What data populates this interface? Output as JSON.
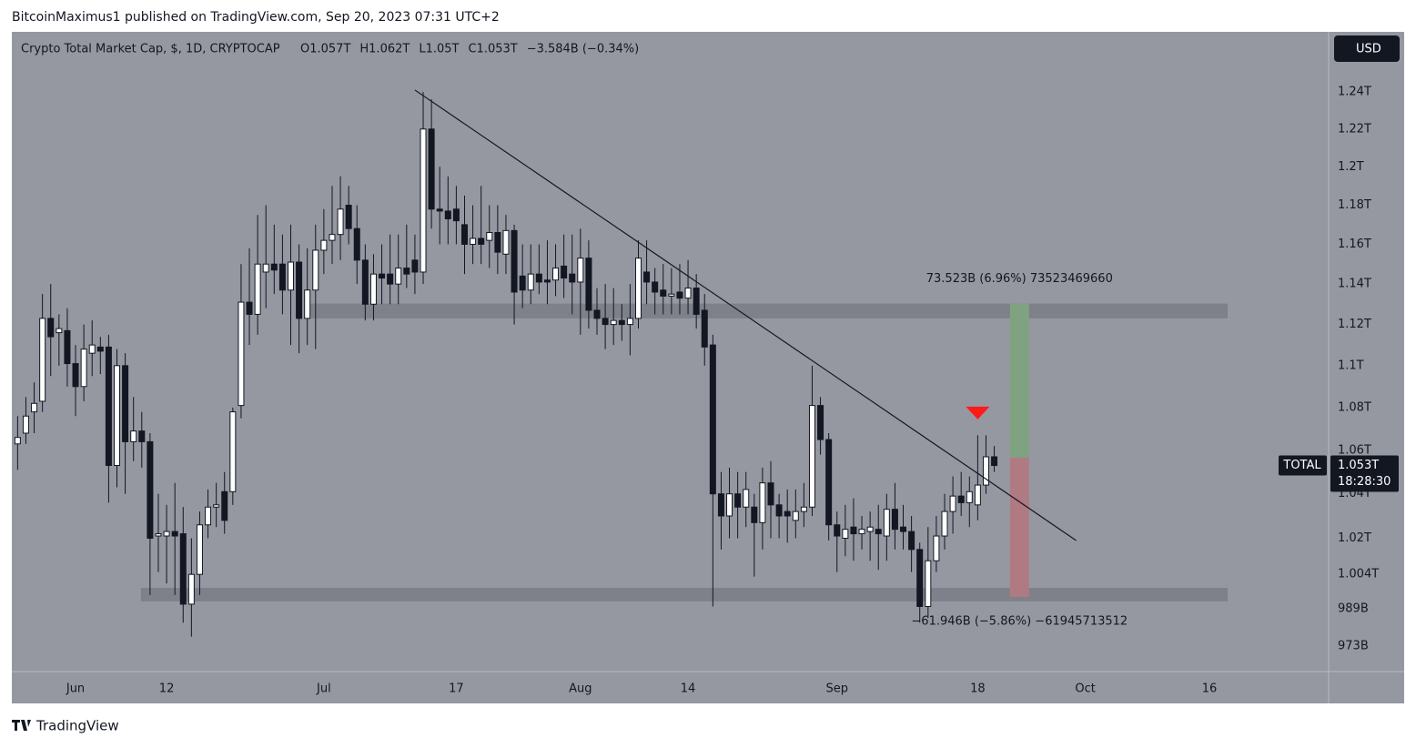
{
  "header": "BitcoinMaximus1 published on TradingView.com, Sep 20, 2023 07:31 UTC+2",
  "footer": "TradingView",
  "chart_data": {
    "type": "candlestick",
    "title": "Crypto Total Market Cap, $, 1D, CRYPTOCAP",
    "legend": [
      "O1.057T",
      "H1.062T",
      "L1.05T",
      "C1.053T",
      "−3.584B (−0.34%)"
    ],
    "currency": "USD",
    "symbol": "TOTAL",
    "last_price": {
      "value": 1053,
      "label": "1.053T"
    },
    "countdown": "18:28:30",
    "log_scale": true,
    "up_color": "#ffffff",
    "down_color": "#131722",
    "background": "#9598a1",
    "xlim": [
      -0.7,
      158.4
    ],
    "xticks": [
      {
        "value": 7,
        "label": "Jun"
      },
      {
        "value": 18,
        "label": "12"
      },
      {
        "value": 37,
        "label": "Jul"
      },
      {
        "value": 53,
        "label": "17"
      },
      {
        "value": 68,
        "label": "Aug"
      },
      {
        "value": 81,
        "label": "14"
      },
      {
        "value": 99,
        "label": "Sep"
      },
      {
        "value": 116,
        "label": "18"
      },
      {
        "value": 129,
        "label": "Oct"
      },
      {
        "value": 144,
        "label": "16"
      }
    ],
    "ylim": [
      962.2,
      1273
    ],
    "yticks": [
      {
        "value": 1240,
        "label": "1.24T"
      },
      {
        "value": 1220,
        "label": "1.22T"
      },
      {
        "value": 1200,
        "label": "1.2T"
      },
      {
        "value": 1180,
        "label": "1.18T"
      },
      {
        "value": 1160,
        "label": "1.16T"
      },
      {
        "value": 1140,
        "label": "1.14T"
      },
      {
        "value": 1120,
        "label": "1.12T"
      },
      {
        "value": 1100,
        "label": "1.1T"
      },
      {
        "value": 1080,
        "label": "1.08T"
      },
      {
        "value": 1060,
        "label": "1.06T"
      },
      {
        "value": 1040,
        "label": "1.04T"
      },
      {
        "value": 1020,
        "label": "1.02T"
      },
      {
        "value": 1004,
        "label": "1.004T"
      },
      {
        "value": 989,
        "label": "989B"
      },
      {
        "value": 973,
        "label": "973B"
      }
    ],
    "open": [
      1063,
      1068,
      1078,
      1083,
      1123,
      1116,
      1117,
      1101,
      1090,
      1106,
      1109,
      1109,
      1053,
      1100,
      1064,
      1069,
      1064,
      1021,
      1021,
      1023,
      1022,
      991,
      1004,
      1026,
      1034,
      1041,
      1041,
      1081,
      1131,
      1125,
      1146,
      1150,
      1150,
      1137,
      1151,
      1123,
      1137,
      1157,
      1162,
      1165,
      1180,
      1168,
      1152,
      1130,
      1145,
      1145,
      1140,
      1148,
      1152,
      1146,
      1220,
      1178,
      1177,
      1178,
      1170,
      1160,
      1163,
      1162,
      1166,
      1155,
      1167,
      1144,
      1137,
      1145,
      1142,
      1142,
      1149,
      1145,
      1141,
      1153,
      1127,
      1123,
      1120,
      1122,
      1120,
      1123,
      1146,
      1141,
      1137,
      1134,
      1136,
      1133,
      1138,
      1127,
      1110,
      1040,
      1030,
      1040,
      1034,
      1034,
      1027,
      1045,
      1035,
      1032,
      1028,
      1032,
      1034,
      1081,
      1065,
      1026,
      1020,
      1025,
      1022,
      1023,
      1024,
      1021,
      1033,
      1025,
      1023,
      1015,
      990,
      1010,
      1021,
      1032,
      1039,
      1036,
      1035,
      1044,
      1057
    ],
    "high": [
      1076,
      1085,
      1092,
      1135,
      1140,
      1125,
      1128,
      1110,
      1120,
      1122,
      1114,
      1115,
      1108,
      1106,
      1085,
      1078,
      1068,
      1040,
      1035,
      1045,
      1034,
      1020,
      1032,
      1042,
      1045,
      1050,
      1080,
      1150,
      1158,
      1175,
      1180,
      1170,
      1165,
      1170,
      1160,
      1158,
      1170,
      1178,
      1190,
      1195,
      1190,
      1180,
      1160,
      1155,
      1160,
      1165,
      1165,
      1170,
      1165,
      1240,
      1236,
      1200,
      1195,
      1190,
      1185,
      1180,
      1190,
      1180,
      1180,
      1175,
      1170,
      1160,
      1160,
      1160,
      1162,
      1160,
      1165,
      1165,
      1168,
      1162,
      1138,
      1140,
      1138,
      1130,
      1140,
      1162,
      1162,
      1148,
      1150,
      1148,
      1150,
      1152,
      1145,
      1135,
      1115,
      1050,
      1052,
      1050,
      1050,
      1040,
      1052,
      1055,
      1040,
      1042,
      1042,
      1045,
      1100,
      1085,
      1068,
      1032,
      1035,
      1038,
      1030,
      1032,
      1035,
      1040,
      1045,
      1035,
      1030,
      1018,
      1025,
      1030,
      1040,
      1048,
      1050,
      1048,
      1067,
      1067,
      1062
    ],
    "low": [
      1051,
      1063,
      1068,
      1078,
      1095,
      1100,
      1090,
      1076,
      1083,
      1095,
      1096,
      1036,
      1043,
      1040,
      1055,
      1052,
      995,
      1005,
      1000,
      995,
      983,
      977,
      995,
      1020,
      1025,
      1022,
      1035,
      1075,
      1110,
      1115,
      1128,
      1135,
      1125,
      1110,
      1106,
      1110,
      1108,
      1145,
      1150,
      1152,
      1160,
      1140,
      1122,
      1122,
      1130,
      1130,
      1130,
      1138,
      1135,
      1140,
      1168,
      1160,
      1160,
      1160,
      1145,
      1150,
      1150,
      1148,
      1145,
      1145,
      1120,
      1128,
      1130,
      1135,
      1130,
      1134,
      1133,
      1125,
      1115,
      1118,
      1115,
      1108,
      1110,
      1112,
      1105,
      1118,
      1130,
      1125,
      1125,
      1125,
      1125,
      1125,
      1118,
      1100,
      990,
      1015,
      1020,
      1020,
      1025,
      1003,
      1015,
      1020,
      1020,
      1018,
      1020,
      1025,
      1030,
      1058,
      1019,
      1005,
      1012,
      1010,
      1015,
      1010,
      1006,
      1010,
      1015,
      1015,
      1005,
      983,
      985,
      1005,
      1015,
      1022,
      1030,
      1025,
      1028,
      1040,
      1050
    ],
    "close": [
      1066,
      1076,
      1082,
      1123,
      1114,
      1118,
      1101,
      1090,
      1108,
      1110,
      1107,
      1053,
      1100,
      1064,
      1069,
      1064,
      1020,
      1022,
      1023,
      1021,
      991,
      1004,
      1026,
      1034,
      1035,
      1028,
      1078,
      1131,
      1125,
      1150,
      1150,
      1147,
      1137,
      1151,
      1123,
      1137,
      1157,
      1162,
      1165,
      1178,
      1168,
      1152,
      1130,
      1145,
      1143,
      1140,
      1148,
      1145,
      1146,
      1220,
      1178,
      1177,
      1173,
      1172,
      1160,
      1163,
      1160,
      1166,
      1156,
      1167,
      1136,
      1137,
      1145,
      1141,
      1141,
      1148,
      1143,
      1141,
      1153,
      1127,
      1123,
      1120,
      1122,
      1120,
      1123,
      1153,
      1141,
      1136,
      1134,
      1135,
      1133,
      1138,
      1125,
      1109,
      1040,
      1030,
      1040,
      1034,
      1042,
      1027,
      1045,
      1035,
      1030,
      1030,
      1032,
      1034,
      1081,
      1065,
      1026,
      1021,
      1024,
      1022,
      1024,
      1025,
      1022,
      1033,
      1024,
      1023,
      1015,
      990,
      1010,
      1021,
      1032,
      1039,
      1036,
      1041,
      1044,
      1057,
      1053
    ],
    "zones": [
      {
        "x": [
          35.3,
          146.2
        ],
        "y": [
          1123,
          1130.3
        ],
        "color": "#7e818a"
      },
      {
        "x": [
          14.9,
          146.2
        ],
        "y": [
          992.2,
          998.1
        ],
        "color": "#7e818a"
      }
    ],
    "trendline": {
      "x": [
        48,
        127.9
      ],
      "y": [
        1241,
        1019
      ],
      "color": "#131722"
    },
    "position": {
      "x": [
        119.9,
        122.2
      ],
      "entry": 1056.6,
      "target": 1130.3,
      "stop": 994.2,
      "target_color": "#7fa380",
      "stop_color": "#b07a82",
      "target_label": "73.523B (6.96%) 73523469660",
      "stop_label": "−61.946B (−5.86%) −61945713512"
    },
    "signal": {
      "x": 116,
      "y": 1077,
      "color": "#ff1a1a"
    }
  }
}
